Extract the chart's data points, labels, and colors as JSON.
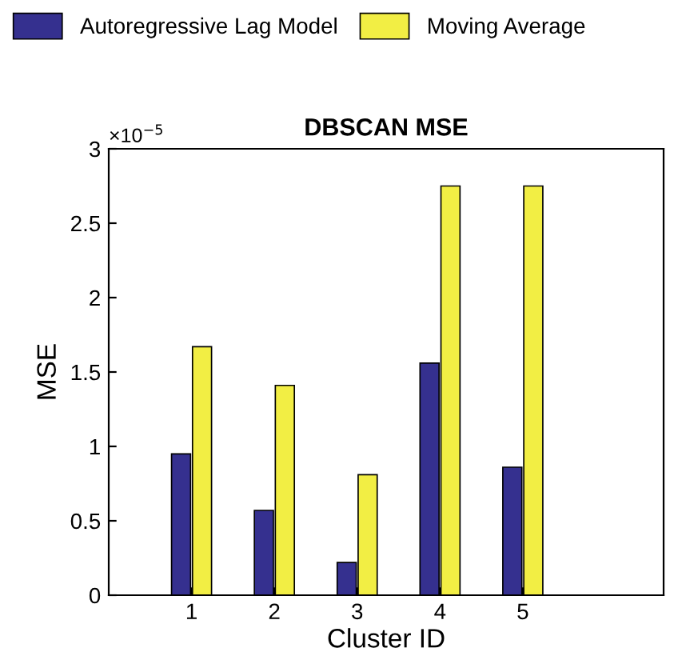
{
  "chart_data": {
    "type": "bar",
    "title": "DBSCAN MSE",
    "xlabel": "Cluster ID",
    "ylabel": "MSE",
    "categories": [
      "1",
      "2",
      "3",
      "4",
      "5"
    ],
    "series": [
      {
        "name": "Autoregressive Lag Model",
        "color": "#35308f",
        "values": [
          0.95,
          0.57,
          0.22,
          1.56,
          0.86
        ]
      },
      {
        "name": "Moving Average",
        "color": "#f2ee44",
        "values": [
          1.67,
          1.41,
          0.81,
          2.75,
          2.75
        ]
      }
    ],
    "ylim": [
      0,
      3
    ],
    "yticks": [
      0,
      0.5,
      1,
      1.5,
      2,
      2.5,
      3
    ],
    "annotations": [
      "×10$^{−5}$"
    ],
    "grid": false,
    "legend": "top left"
  }
}
